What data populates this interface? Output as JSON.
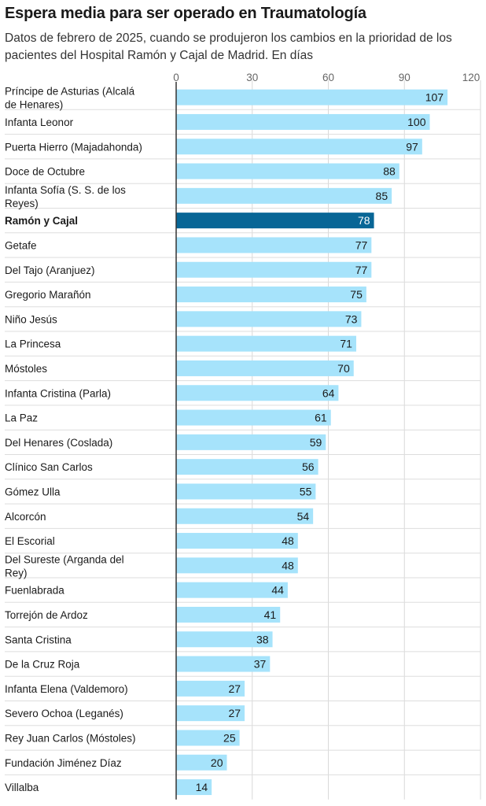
{
  "title": "Espera media para ser operado en Traumatología",
  "subtitle": "Datos de febrero de 2025, cuando se produjeron los cambios en la prioridad de los pacientes del Hospital Ramón y Cajal de Madrid. En días",
  "colors": {
    "bar": "#a6e3fb",
    "highlight": "#086696"
  },
  "chart_data": {
    "type": "bar",
    "orientation": "horizontal",
    "xlim": [
      0,
      120
    ],
    "ticks": [
      0,
      30,
      60,
      90,
      120
    ],
    "grid": true,
    "highlight": "Ramón y Cajal",
    "categories": [
      "Príncipe de Asturias (Alcalá de Henares)",
      "Infanta Leonor",
      "Puerta Hierro (Majadahonda)",
      "Doce de Octubre",
      "Infanta Sofía (S. S. de los Reyes)",
      "Ramón y Cajal",
      "Getafe",
      "Del Tajo (Aranjuez)",
      "Gregorio Marañón",
      "Niño Jesús",
      "La Princesa",
      "Móstoles",
      "Infanta Cristina (Parla)",
      "La Paz",
      "Del Henares (Coslada)",
      "Clínico San Carlos",
      "Gómez Ulla",
      "Alcorcón",
      "El Escorial",
      "Del Sureste (Arganda del Rey)",
      "Fuenlabrada",
      "Torrejón de Ardoz",
      "Santa Cristina",
      "De la Cruz Roja",
      "Infanta Elena (Valdemoro)",
      "Severo Ochoa (Leganés)",
      "Rey Juan Carlos (Móstoles)",
      "Fundación Jiménez Díaz",
      "Villalba"
    ],
    "values": [
      107,
      100,
      97,
      88,
      85,
      78,
      77,
      77,
      75,
      73,
      71,
      70,
      64,
      61,
      59,
      56,
      55,
      54,
      48,
      48,
      44,
      41,
      38,
      37,
      27,
      27,
      25,
      20,
      14
    ]
  }
}
